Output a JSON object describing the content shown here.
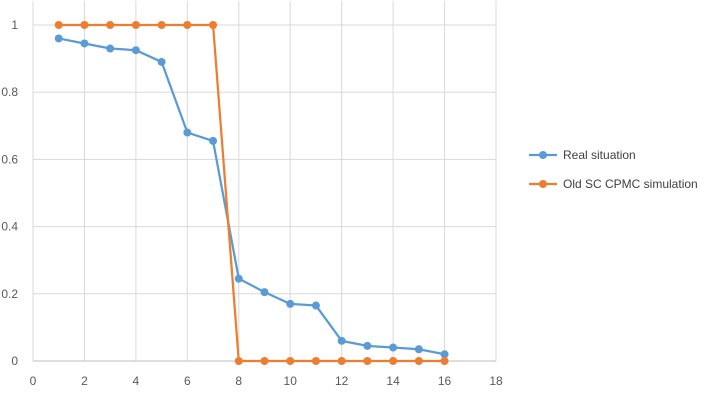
{
  "chart_data": {
    "type": "line",
    "title": "",
    "xlabel": "",
    "ylabel": "",
    "xlim": [
      0,
      18
    ],
    "ylim": [
      0,
      1
    ],
    "x_ticks": [
      0,
      2,
      4,
      6,
      8,
      10,
      12,
      14,
      16,
      18
    ],
    "y_ticks": [
      0,
      0.2,
      0.4,
      0.6,
      0.8,
      1
    ],
    "x_tick_labels": [
      "0",
      "2",
      "4",
      "6",
      "8",
      "10",
      "12",
      "14",
      "16",
      "18"
    ],
    "y_tick_labels": [
      "0",
      "0.2",
      "0.4",
      "0.6",
      "0.8",
      "1"
    ],
    "grid": true,
    "legend_position": "right",
    "x": [
      1,
      2,
      3,
      4,
      5,
      6,
      7,
      8,
      9,
      10,
      11,
      12,
      13,
      14,
      15,
      16
    ],
    "series": [
      {
        "name": "Real situation",
        "color": "#5B9BD5",
        "values": [
          0.96,
          0.945,
          0.93,
          0.925,
          0.89,
          0.68,
          0.655,
          0.245,
          0.205,
          0.17,
          0.165,
          0.06,
          0.045,
          0.04,
          0.035,
          0.02
        ]
      },
      {
        "name": "Old SC CPMC simulation",
        "color": "#ED7D31",
        "values": [
          1,
          1,
          1,
          1,
          1,
          1,
          1,
          0,
          0,
          0,
          0,
          0,
          0,
          0,
          0,
          0
        ]
      }
    ]
  }
}
